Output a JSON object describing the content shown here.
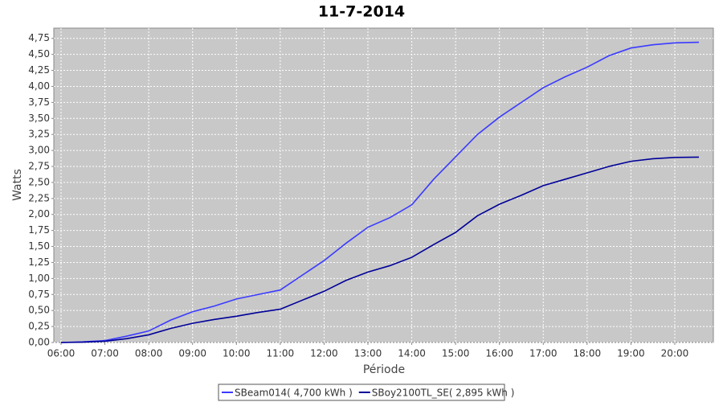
{
  "chart_data": {
    "type": "line",
    "title": "11-7-2014",
    "x_label": "Période",
    "y_label": "Watts",
    "x": [
      6,
      6.5,
      7,
      7.5,
      8,
      8.5,
      9,
      9.5,
      10,
      10.5,
      11,
      11.5,
      12,
      12.5,
      13,
      13.5,
      14,
      14.5,
      15,
      15.5,
      16,
      16.5,
      17,
      17.5,
      18,
      18.5,
      19,
      19.5,
      20,
      20.55
    ],
    "series": [
      {
        "name": "SBeam014( 4,700 kWh )",
        "color": "#3b3bff",
        "values": [
          0,
          0.01,
          0.03,
          0.1,
          0.18,
          0.35,
          0.48,
          0.57,
          0.68,
          0.75,
          0.82,
          1.05,
          1.28,
          1.55,
          1.8,
          1.95,
          2.15,
          2.55,
          2.9,
          3.25,
          3.52,
          3.75,
          3.98,
          4.15,
          4.3,
          4.48,
          4.6,
          4.65,
          4.68,
          4.69
        ]
      },
      {
        "name": "SBoy2100TL_SE( 2,895 kWh )",
        "color": "#000099",
        "values": [
          0,
          0.005,
          0.02,
          0.06,
          0.12,
          0.22,
          0.3,
          0.36,
          0.41,
          0.47,
          0.52,
          0.66,
          0.8,
          0.97,
          1.1,
          1.2,
          1.33,
          1.53,
          1.72,
          1.98,
          2.16,
          2.3,
          2.45,
          2.55,
          2.65,
          2.75,
          2.83,
          2.87,
          2.89,
          2.895
        ]
      }
    ],
    "xlim": [
      5.835,
      20.88
    ],
    "ylim": [
      0,
      4.91
    ],
    "xticks": [
      {
        "value": 6,
        "label": "06:00"
      },
      {
        "value": 7,
        "label": "07:00"
      },
      {
        "value": 8,
        "label": "08:00"
      },
      {
        "value": 9,
        "label": "09:00"
      },
      {
        "value": 10,
        "label": "10:00"
      },
      {
        "value": 11,
        "label": "11:00"
      },
      {
        "value": 12,
        "label": "12:00"
      },
      {
        "value": 13,
        "label": "13:00"
      },
      {
        "value": 14,
        "label": "14:00"
      },
      {
        "value": 15,
        "label": "15:00"
      },
      {
        "value": 16,
        "label": "16:00"
      },
      {
        "value": 17,
        "label": "17:00"
      },
      {
        "value": 18,
        "label": "18:00"
      },
      {
        "value": 19,
        "label": "19:00"
      },
      {
        "value": 20,
        "label": "20:00"
      }
    ],
    "yticks": [
      {
        "value": 0,
        "label": "0,00"
      },
      {
        "value": 0.25,
        "label": "0,25"
      },
      {
        "value": 0.5,
        "label": "0,50"
      },
      {
        "value": 0.75,
        "label": "0,75"
      },
      {
        "value": 1,
        "label": "1,00"
      },
      {
        "value": 1.25,
        "label": "1,25"
      },
      {
        "value": 1.5,
        "label": "1,50"
      },
      {
        "value": 1.75,
        "label": "1,75"
      },
      {
        "value": 2,
        "label": "2,00"
      },
      {
        "value": 2.25,
        "label": "2,25"
      },
      {
        "value": 2.5,
        "label": "2,50"
      },
      {
        "value": 2.75,
        "label": "2,75"
      },
      {
        "value": 3,
        "label": "3,00"
      },
      {
        "value": 3.25,
        "label": "3,25"
      },
      {
        "value": 3.5,
        "label": "3,50"
      },
      {
        "value": 3.75,
        "label": "3,75"
      },
      {
        "value": 4,
        "label": "4,00"
      },
      {
        "value": 4.25,
        "label": "4,25"
      },
      {
        "value": 4.5,
        "label": "4,50"
      },
      {
        "value": 4.75,
        "label": "4,75"
      }
    ],
    "grid": true,
    "legend": "bottom"
  }
}
